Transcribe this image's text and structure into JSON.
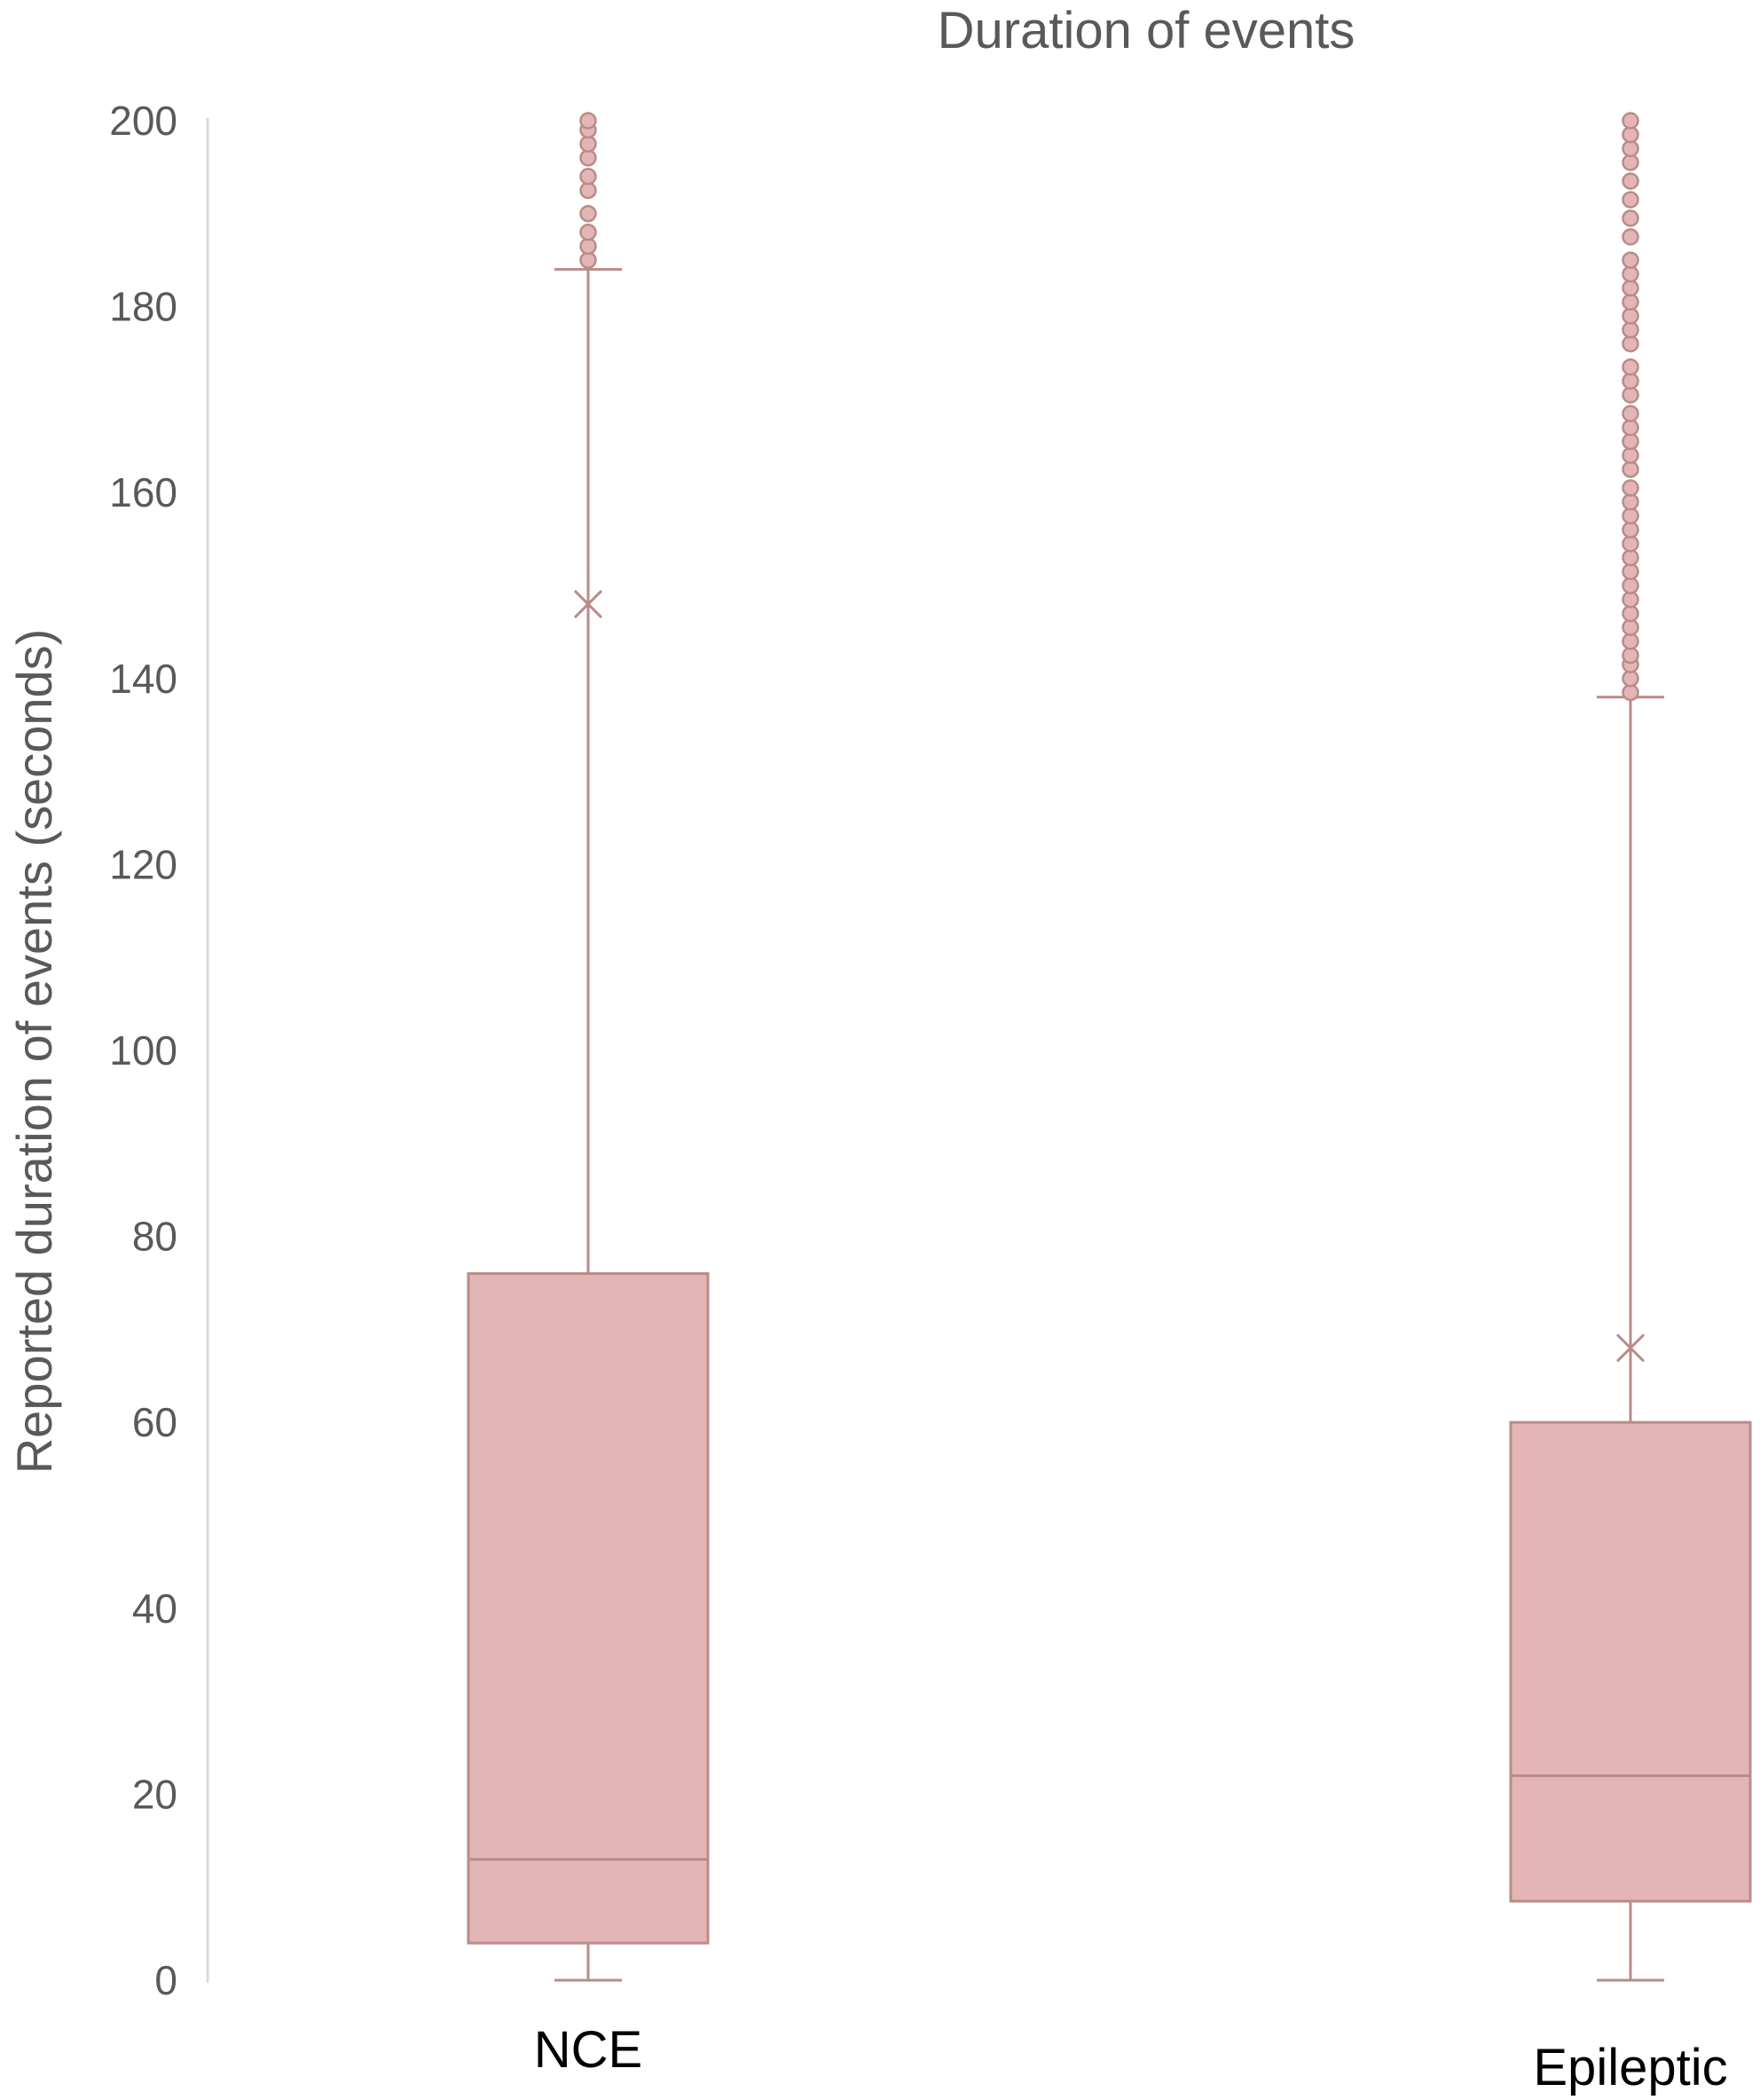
{
  "chart_data": {
    "type": "box",
    "title": "Duration of events",
    "xlabel": "",
    "ylabel": "Reported duration of events (seconds)",
    "ylim": [
      0,
      200
    ],
    "yticks": [
      0,
      20,
      40,
      60,
      80,
      100,
      120,
      140,
      160,
      180,
      200
    ],
    "grid": false,
    "legend": "none",
    "colors": {
      "box_fill": "#e3b5b4",
      "box_stroke": "#b98b89",
      "text": "#595959",
      "axis": "#d9d9d9"
    },
    "categories": [
      "NCE",
      "Epileptic"
    ],
    "series": [
      {
        "category": "NCE",
        "whisker_low": 0,
        "q1": 4,
        "median": 13,
        "q3": 76,
        "whisker_high": 184,
        "mean": 148,
        "outliers": [
          185,
          186.5,
          188,
          190,
          192.5,
          194,
          196,
          197.5,
          199,
          200
        ]
      },
      {
        "category": "Epileptic",
        "whisker_low": 0,
        "q1": 8.5,
        "median": 22,
        "q3": 60,
        "whisker_high": 138,
        "mean": 68,
        "outliers": [
          138.5,
          140,
          141.5,
          142.5,
          144,
          145.5,
          147,
          148.5,
          150,
          151.5,
          153,
          154.5,
          156,
          157.5,
          159,
          160.5,
          162.5,
          164,
          165.5,
          167,
          168.5,
          170.5,
          172,
          173.5,
          176,
          177.5,
          179,
          180.5,
          182,
          183.5,
          185,
          187.5,
          189.5,
          191.5,
          193.5,
          195.5,
          197,
          198.5,
          200
        ]
      }
    ]
  }
}
